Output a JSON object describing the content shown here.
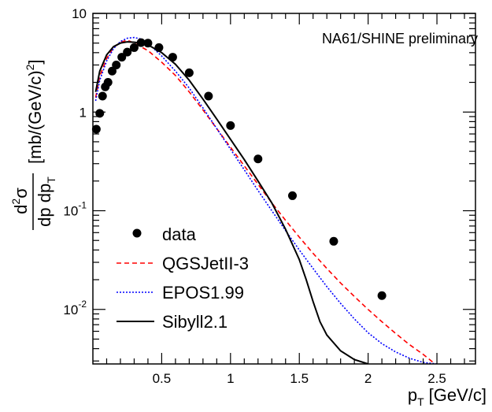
{
  "chart_data": {
    "type": "scatter",
    "annotation": "NA61/SHINE preliminary",
    "xlabel": {
      "main": "p",
      "sub": "T",
      "units": "[GeV/c]"
    },
    "ylabel": {
      "numerator_d": "d",
      "numerator_sup": "2",
      "numerator_sigma": "σ",
      "denominator": "dp dp",
      "denominator_sub": "T",
      "units": "[mb/(GeV/c)",
      "units_sup": "2",
      "units_close": "]"
    },
    "xlim": [
      0.0,
      2.78
    ],
    "ylim": [
      0.0028,
      10
    ],
    "y_scale": "log",
    "x_ticks": [
      {
        "value": 0.5,
        "label": "0.5"
      },
      {
        "value": 1.0,
        "label": "1"
      },
      {
        "value": 1.5,
        "label": "1.5"
      },
      {
        "value": 2.0,
        "label": "2"
      },
      {
        "value": 2.5,
        "label": "2.5"
      }
    ],
    "y_ticks": [
      {
        "value": 10,
        "label": "10",
        "exp": ""
      },
      {
        "value": 1,
        "label": "1",
        "exp": ""
      },
      {
        "value": 0.1,
        "label": "10",
        "exp": "-1"
      },
      {
        "value": 0.01,
        "label": "10",
        "exp": "-2"
      }
    ],
    "legend": {
      "placement": "bottom-left",
      "entries": [
        {
          "label": "data",
          "style": "marker"
        },
        {
          "label": "QGSJetII-3",
          "style": "dashed"
        },
        {
          "label": "EPOS1.99",
          "style": "dotted"
        },
        {
          "label": "Sibyll2.1",
          "style": "solid"
        }
      ]
    },
    "series": [
      {
        "name": "data",
        "style": "marker",
        "color": "#000000",
        "points": [
          [
            0.025,
            0.67
          ],
          [
            0.05,
            0.97
          ],
          [
            0.07,
            1.45
          ],
          [
            0.09,
            1.8
          ],
          [
            0.11,
            2.0
          ],
          [
            0.14,
            2.6
          ],
          [
            0.17,
            3.0
          ],
          [
            0.21,
            3.6
          ],
          [
            0.25,
            4.05
          ],
          [
            0.3,
            4.5
          ],
          [
            0.35,
            5.05
          ],
          [
            0.4,
            5.0
          ],
          [
            0.48,
            4.5
          ],
          [
            0.58,
            3.6
          ],
          [
            0.7,
            2.5
          ],
          [
            0.84,
            1.45
          ],
          [
            1.0,
            0.73
          ],
          [
            1.2,
            0.335
          ],
          [
            1.45,
            0.142
          ],
          [
            1.75,
            0.049
          ],
          [
            2.1,
            0.0138
          ]
        ]
      },
      {
        "name": "QGSJetII-3",
        "style": "dashed",
        "color": "#ff0000",
        "points": [
          [
            0.02,
            1.4
          ],
          [
            0.05,
            2.3
          ],
          [
            0.1,
            3.5
          ],
          [
            0.15,
            4.5
          ],
          [
            0.2,
            5.1
          ],
          [
            0.25,
            5.35
          ],
          [
            0.3,
            5.0
          ],
          [
            0.4,
            4.2
          ],
          [
            0.5,
            3.2
          ],
          [
            0.6,
            2.35
          ],
          [
            0.7,
            1.6
          ],
          [
            0.8,
            1.05
          ],
          [
            0.9,
            0.68
          ],
          [
            1.0,
            0.44
          ],
          [
            1.1,
            0.285
          ],
          [
            1.2,
            0.185
          ],
          [
            1.3,
            0.12
          ],
          [
            1.4,
            0.08
          ],
          [
            1.5,
            0.054
          ],
          [
            1.6,
            0.037
          ],
          [
            1.7,
            0.026
          ],
          [
            1.8,
            0.0185
          ],
          [
            1.9,
            0.0135
          ],
          [
            2.0,
            0.01
          ],
          [
            2.1,
            0.0075
          ],
          [
            2.2,
            0.0057
          ],
          [
            2.3,
            0.0044
          ],
          [
            2.4,
            0.0035
          ],
          [
            2.5,
            0.0027
          ]
        ]
      },
      {
        "name": "EPOS1.99",
        "style": "dotted",
        "color": "#0000ff",
        "points": [
          [
            0.02,
            1.3
          ],
          [
            0.05,
            2.1
          ],
          [
            0.1,
            3.3
          ],
          [
            0.15,
            4.4
          ],
          [
            0.2,
            5.2
          ],
          [
            0.25,
            5.6
          ],
          [
            0.3,
            5.7
          ],
          [
            0.35,
            5.5
          ],
          [
            0.4,
            5.0
          ],
          [
            0.5,
            3.7
          ],
          [
            0.6,
            2.6
          ],
          [
            0.7,
            1.75
          ],
          [
            0.8,
            1.1
          ],
          [
            0.9,
            0.68
          ],
          [
            1.0,
            0.42
          ],
          [
            1.1,
            0.26
          ],
          [
            1.2,
            0.16
          ],
          [
            1.3,
            0.1
          ],
          [
            1.4,
            0.063
          ],
          [
            1.5,
            0.04
          ],
          [
            1.6,
            0.026
          ],
          [
            1.7,
            0.017
          ],
          [
            1.8,
            0.0115
          ],
          [
            1.9,
            0.008
          ],
          [
            2.0,
            0.0058
          ],
          [
            2.1,
            0.0045
          ],
          [
            2.2,
            0.0037
          ],
          [
            2.3,
            0.0032
          ],
          [
            2.4,
            0.0029
          ],
          [
            2.5,
            0.0028
          ]
        ]
      },
      {
        "name": "Sibyll2.1",
        "style": "solid",
        "color": "#000000",
        "points": [
          [
            0.02,
            1.6
          ],
          [
            0.05,
            2.6
          ],
          [
            0.1,
            3.8
          ],
          [
            0.15,
            4.6
          ],
          [
            0.2,
            5.0
          ],
          [
            0.25,
            5.15
          ],
          [
            0.3,
            5.1
          ],
          [
            0.35,
            5.0
          ],
          [
            0.4,
            4.8
          ],
          [
            0.5,
            4.0
          ],
          [
            0.6,
            3.05
          ],
          [
            0.7,
            2.1
          ],
          [
            0.8,
            1.35
          ],
          [
            0.9,
            0.85
          ],
          [
            1.0,
            0.53
          ],
          [
            1.1,
            0.33
          ],
          [
            1.2,
            0.2
          ],
          [
            1.3,
            0.12
          ],
          [
            1.4,
            0.065
          ],
          [
            1.5,
            0.032
          ],
          [
            1.55,
            0.02
          ],
          [
            1.6,
            0.012
          ],
          [
            1.65,
            0.0075
          ],
          [
            1.7,
            0.0055
          ],
          [
            1.8,
            0.0038
          ],
          [
            1.9,
            0.0031
          ],
          [
            2.0,
            0.0028
          ]
        ]
      }
    ]
  }
}
